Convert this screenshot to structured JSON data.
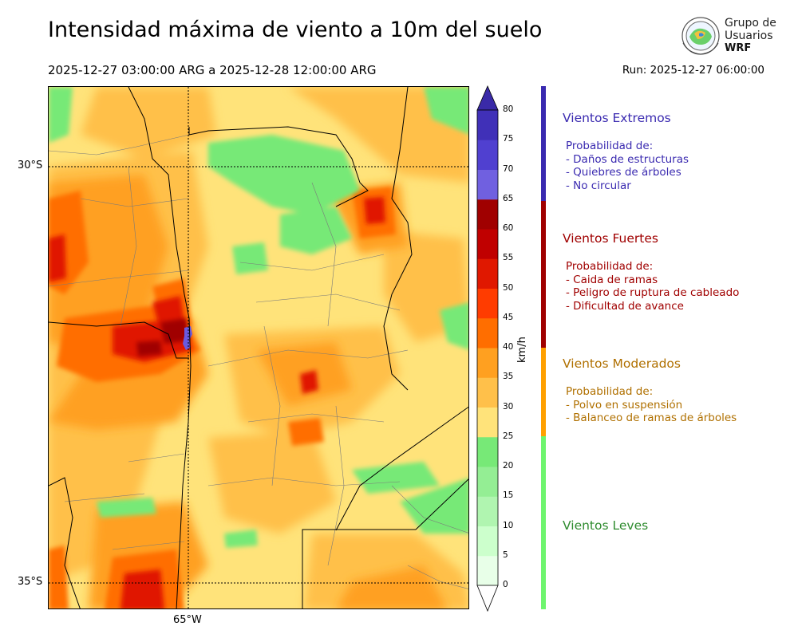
{
  "header": {
    "title": "Intensidad máxima de viento a 10m del suelo",
    "date_range": "2025-12-27 03:00:00 ARG  a  2025-12-28 12:00:00 ARG",
    "run": "Run: 2025-12-27 06:00:00"
  },
  "logo": {
    "line1": "Grupo de",
    "line2": "Usuarios",
    "line3": "WRF"
  },
  "map": {
    "lat_labels": [
      "30°S",
      "35°S"
    ],
    "lon_labels": [
      "65°W"
    ],
    "grid_style": "dotted"
  },
  "colorbar": {
    "unit": "km/h",
    "ticks": [
      "0",
      "5",
      "10",
      "15",
      "20",
      "25",
      "30",
      "35",
      "40",
      "45",
      "50",
      "55",
      "60",
      "65",
      "70",
      "75",
      "80"
    ],
    "colors": [
      "#e8ffe8",
      "#ccffcc",
      "#b0f5b0",
      "#94ee94",
      "#77e977",
      "#ffe37a",
      "#ffc04a",
      "#ffa020",
      "#ff6e00",
      "#ff3c00",
      "#e01800",
      "#c00000",
      "#a00000",
      "#7060e0",
      "#5040d0",
      "#4030b8"
    ],
    "over_color": "#3a2aa8",
    "under_color": "#ffffff"
  },
  "categories": [
    {
      "name": "Vientos Extremos",
      "color": "#3a2ab0",
      "desc_lines": [
        "Probabilidad de:",
        "- Daños de estructuras",
        "- Quiebres de árboles",
        "- No circular"
      ]
    },
    {
      "name": "Vientos Fuertes",
      "color": "#a00000",
      "desc_lines": [
        "Probabilidad de:",
        "- Caida de ramas",
        "- Peligro de ruptura de cableado",
        "- Dificultad de avance"
      ]
    },
    {
      "name": "Vientos Moderados",
      "color": "#b07000",
      "bar_color": "#ffa000",
      "desc_lines": [
        "Probabilidad de:",
        "- Polvo en suspensión",
        "- Balanceo de ramas de árboles"
      ]
    },
    {
      "name": "Vientos Leves",
      "color": "#2e8b2e",
      "bar_color": "#6ef56e",
      "desc_lines": []
    }
  ]
}
